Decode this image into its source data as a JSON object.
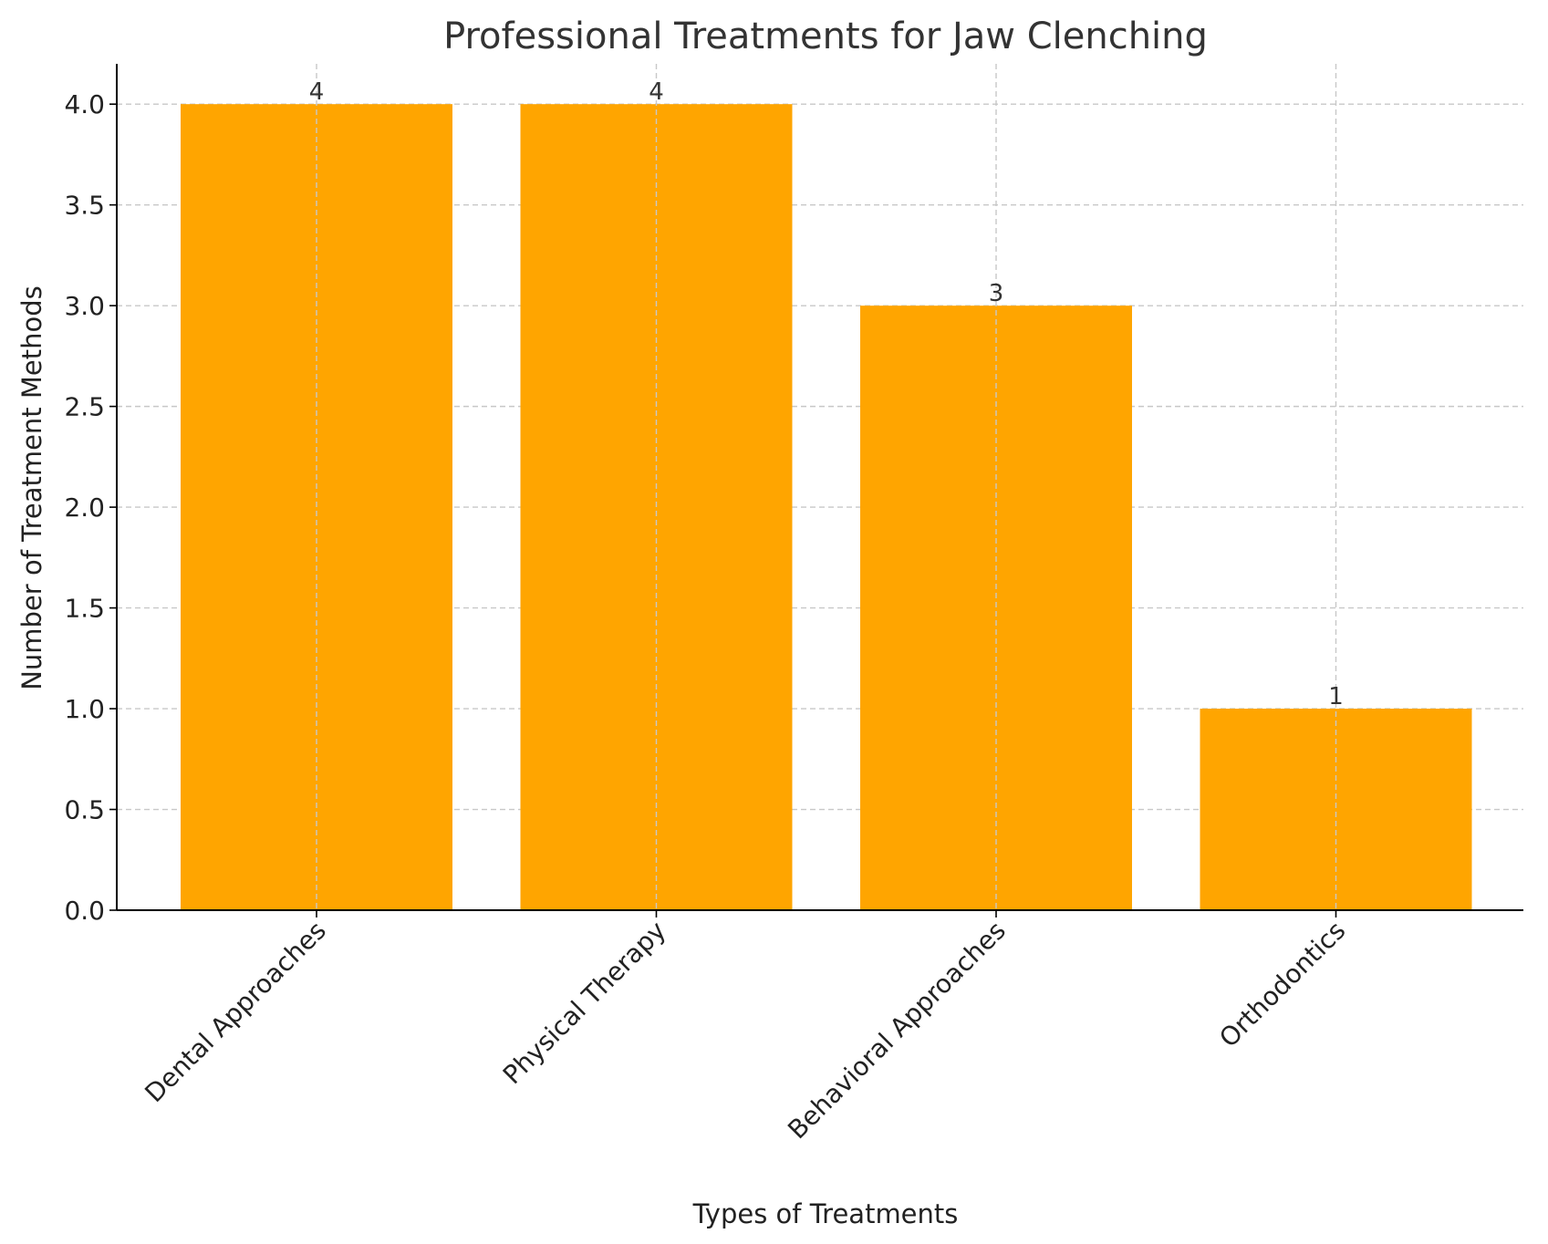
{
  "chart_data": {
    "type": "bar",
    "title": "Professional Treatments for Jaw Clenching",
    "xlabel": "Types of Treatments",
    "ylabel": "Number of Treatment Methods",
    "categories": [
      "Dental Approaches",
      "Physical Therapy",
      "Behavioral Approaches",
      "Orthodontics"
    ],
    "values": [
      4,
      4,
      3,
      1
    ],
    "data_labels": [
      "4",
      "4",
      "3",
      "1"
    ],
    "ylim": [
      0,
      4.2
    ],
    "yticks": [
      0.0,
      0.5,
      1.0,
      1.5,
      2.0,
      2.5,
      3.0,
      3.5,
      4.0
    ],
    "ytick_labels": [
      "0.0",
      "0.5",
      "1.0",
      "1.5",
      "2.0",
      "2.5",
      "3.0",
      "3.5",
      "4.0"
    ],
    "grid": true,
    "bar_color": "#FFA500",
    "grid_color": "#c8c8c8",
    "axis_color": "#000000"
  }
}
